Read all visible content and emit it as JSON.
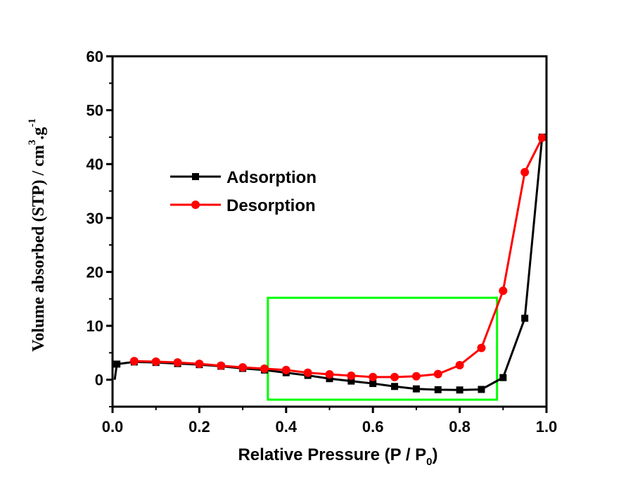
{
  "chart_data": {
    "type": "line",
    "title": "",
    "xlabel": "Relative Pressure (P / P",
    "xlabel_sub": "0",
    "xlabel_end": ")",
    "ylabel": "Volume absorbed (STP) / cm",
    "ylabel_sup1": "3",
    "ylabel_mid": ".g",
    "ylabel_sup2": "-1",
    "xlim": [
      0.0,
      1.0
    ],
    "ylim": [
      -5,
      60
    ],
    "x_ticks": [
      0.0,
      0.2,
      0.4,
      0.6,
      0.8,
      1.0
    ],
    "x_tick_labels": [
      "0.0",
      "0.2",
      "0.4",
      "0.6",
      "0.8",
      "1.0"
    ],
    "y_ticks": [
      0,
      10,
      20,
      30,
      40,
      50,
      60
    ],
    "y_tick_labels": [
      "0",
      "10",
      "20",
      "30",
      "40",
      "50",
      "60"
    ],
    "grid": false,
    "legend_position": "upper-left",
    "series": [
      {
        "name": "Adsorption",
        "color": "#000000",
        "marker": "square",
        "x": [
          0.005,
          0.01,
          0.05,
          0.1,
          0.15,
          0.2,
          0.25,
          0.3,
          0.35,
          0.4,
          0.45,
          0.5,
          0.55,
          0.6,
          0.65,
          0.7,
          0.75,
          0.8,
          0.85,
          0.9,
          0.95,
          0.99
        ],
        "y": [
          0.0,
          2.9,
          3.3,
          3.2,
          3.0,
          2.8,
          2.5,
          2.1,
          1.8,
          1.3,
          0.8,
          0.2,
          -0.25,
          -0.7,
          -1.25,
          -1.7,
          -1.85,
          -1.9,
          -1.8,
          0.4,
          11.4,
          45.0
        ]
      },
      {
        "name": "Desorption",
        "color": "#ff0000",
        "marker": "circle",
        "x": [
          0.05,
          0.1,
          0.15,
          0.2,
          0.25,
          0.3,
          0.35,
          0.4,
          0.45,
          0.5,
          0.55,
          0.6,
          0.65,
          0.7,
          0.75,
          0.8,
          0.85,
          0.9,
          0.95,
          0.99
        ],
        "y": [
          3.45,
          3.35,
          3.2,
          2.95,
          2.6,
          2.3,
          2.05,
          1.8,
          1.3,
          1.0,
          0.75,
          0.5,
          0.5,
          0.65,
          1.05,
          2.7,
          5.9,
          16.5,
          38.5,
          44.9
        ]
      }
    ],
    "annotations": [
      {
        "type": "rectangle",
        "color": "#00ff00",
        "x_range": [
          0.358,
          0.886
        ],
        "y_range": [
          -3.7,
          15.2
        ]
      }
    ]
  }
}
